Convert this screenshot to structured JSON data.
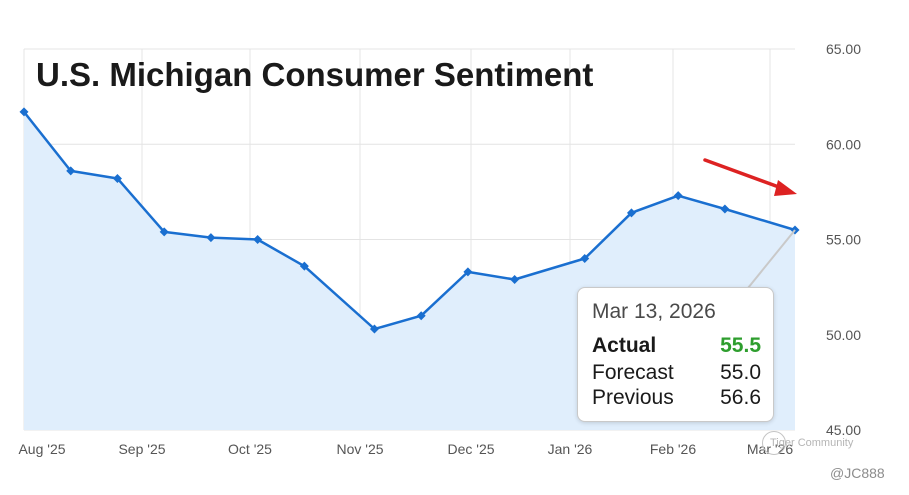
{
  "chart_data": {
    "type": "area",
    "title": "U.S. Michigan Consumer Sentiment",
    "x_tick_labels": [
      "Aug '25",
      "Sep '25",
      "Oct '25",
      "Nov '25",
      "Dec '25",
      "Jan '26",
      "Feb '26",
      "Mar '26"
    ],
    "y_tick_labels": [
      "65.00",
      "60.00",
      "55.00",
      "50.00",
      "45.00"
    ],
    "ylim": [
      45,
      65
    ],
    "y_axis_position": "right",
    "grid": true,
    "series": [
      {
        "x": [
          "2025-07-25",
          "2025-08-08",
          "2025-08-22",
          "2025-09-05",
          "2025-09-19",
          "2025-10-03",
          "2025-10-17",
          "2025-11-07",
          "2025-11-21",
          "2025-12-05",
          "2025-12-19",
          "2026-01-09",
          "2026-01-23",
          "2026-02-06",
          "2026-02-20",
          "2026-03-13"
        ],
        "values": [
          61.7,
          58.6,
          58.2,
          55.4,
          55.1,
          55.0,
          53.6,
          50.3,
          51.0,
          53.3,
          52.9,
          54.0,
          56.4,
          57.3,
          56.6,
          55.5
        ],
        "color": "#1a6fd0",
        "fill": "#e0eefc"
      }
    ],
    "annotations": [
      {
        "type": "arrow",
        "color": "#dd2222",
        "direction": "down-right"
      }
    ]
  },
  "tooltip": {
    "date": "Mar 13, 2026",
    "actual_label": "Actual",
    "actual_value": "55.5",
    "forecast_label": "Forecast",
    "forecast_value": "55.0",
    "previous_label": "Previous",
    "previous_value": "56.6",
    "actual_color": "#2e9e2e"
  },
  "watermark": {
    "community": "Tiger Community",
    "user": "@JC888"
  }
}
